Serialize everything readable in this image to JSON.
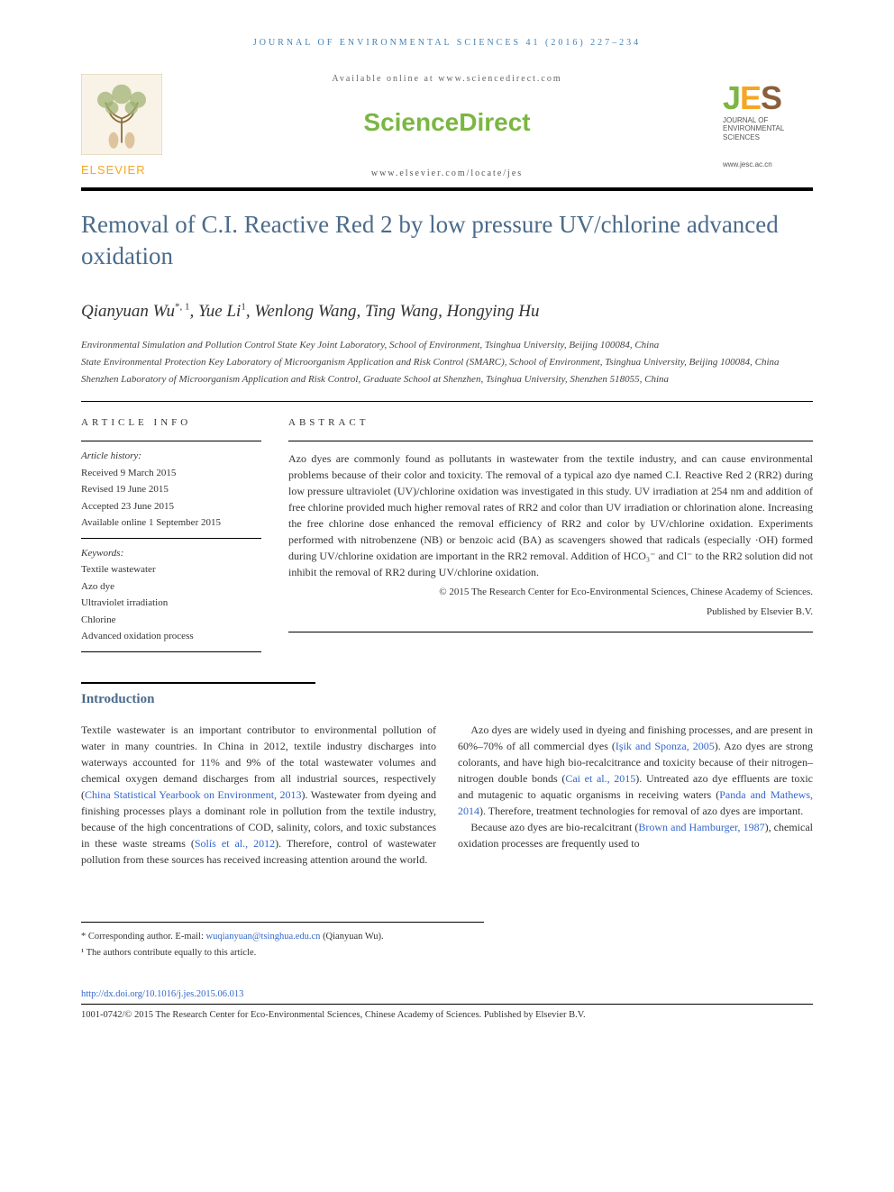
{
  "running_head": "JOURNAL OF ENVIRONMENTAL SCIENCES 41 (2016) 227–234",
  "masthead": {
    "available": "Available online at www.sciencedirect.com",
    "sciencedirect": "ScienceDirect",
    "locate_url": "www.elsevier.com/locate/jes",
    "elsevier_name": "ELSEVIER",
    "jes_sub": "JOURNAL OF ENVIRONMENTAL SCIENCES",
    "jes_url": "www.jesc.ac.cn"
  },
  "title": "Removal of C.I. Reactive Red 2 by low pressure UV/chlorine advanced oxidation",
  "authors_html": "Qianyuan Wu<sup>*, 1</sup>, Yue Li<sup>1</sup>, Wenlong Wang, Ting Wang, Hongying Hu",
  "affiliations": [
    "Environmental Simulation and Pollution Control State Key Joint Laboratory, School of Environment, Tsinghua University, Beijing 100084, China",
    "State Environmental Protection Key Laboratory of Microorganism Application and Risk Control (SMARC), School of Environment, Tsinghua University, Beijing 100084, China",
    "Shenzhen Laboratory of Microorganism Application and Risk Control, Graduate School at Shenzhen, Tsinghua University, Shenzhen 518055, China"
  ],
  "article_info": {
    "head": "ARTICLE INFO",
    "history_label": "Article history:",
    "received": "Received 9 March 2015",
    "revised": "Revised 19 June 2015",
    "accepted": "Accepted 23 June 2015",
    "online": "Available online 1 September 2015",
    "keywords_label": "Keywords:",
    "keywords": [
      "Textile wastewater",
      "Azo dye",
      "Ultraviolet irradiation",
      "Chlorine",
      "Advanced oxidation process"
    ]
  },
  "abstract": {
    "head": "ABSTRACT",
    "text": "Azo dyes are commonly found as pollutants in wastewater from the textile industry, and can cause environmental problems because of their color and toxicity. The removal of a typical azo dye named C.I. Reactive Red 2 (RR2) during low pressure ultraviolet (UV)/chlorine oxidation was investigated in this study. UV irradiation at 254 nm and addition of free chlorine provided much higher removal rates of RR2 and color than UV irradiation or chlorination alone. Increasing the free chlorine dose enhanced the removal efficiency of RR2 and color by UV/chlorine oxidation. Experiments performed with nitrobenzene (NB) or benzoic acid (BA) as scavengers showed that radicals (especially ·OH) formed during UV/chlorine oxidation are important in the RR2 removal. Addition of HCO₃⁻ and Cl⁻ to the RR2 solution did not inhibit the removal of RR2 during UV/chlorine oxidation.",
    "copyright1": "© 2015 The Research Center for Eco-Environmental Sciences, Chinese Academy of Sciences.",
    "copyright2": "Published by Elsevier B.V."
  },
  "introduction": {
    "head": "Introduction",
    "col1_p1a": "Textile wastewater is an important contributor to environmental pollution of water in many countries. In China in 2012, textile industry discharges into waterways accounted for 11% and 9% of the total wastewater volumes and chemical oxygen demand discharges from all industrial sources, respectively (",
    "col1_link1": "China Statistical Yearbook on Environment, 2013",
    "col1_p1b": "). Wastewater from dyeing and finishing processes plays a dominant role in pollution from the textile industry, because of the high concentrations of COD, salinity, colors, and toxic substances in these waste streams (",
    "col1_link2": "Solís et al., 2012",
    "col1_p1c": "). Therefore, control of",
    "col2_p1": "wastewater pollution from these sources has received increasing attention around the world.",
    "col2_p2a": "Azo dyes are widely used in dyeing and finishing processes, and are present in 60%–70% of all commercial dyes (",
    "col2_link1": "Işik and Sponza, 2005",
    "col2_p2b": "). Azo dyes are strong colorants, and have high bio-recalcitrance and toxicity because of their nitrogen–nitrogen double bonds (",
    "col2_link2": "Cai et al., 2015",
    "col2_p2c": "). Untreated azo dye effluents are toxic and mutagenic to aquatic organisms in receiving waters (",
    "col2_link3": "Panda and Mathews, 2014",
    "col2_p2d": "). Therefore, treatment technologies for removal of azo dyes are important.",
    "col2_p3a": "Because azo dyes are bio-recalcitrant (",
    "col2_link4": "Brown and Hamburger, 1987",
    "col2_p3b": "), chemical oxidation processes are frequently used to"
  },
  "footnotes": {
    "corr_label": "* Corresponding author.",
    "corr_text": " E-mail: ",
    "corr_email": "wuqianyuan@tsinghua.edu.cn",
    "corr_name": " (Qianyuan Wu).",
    "equal": "¹ The authors contribute equally to this article."
  },
  "doi": "http://dx.doi.org/10.1016/j.jes.2015.06.013",
  "issn_line": "1001-0742/© 2015 The Research Center for Eco-Environmental Sciences, Chinese Academy of Sciences. Published by Elsevier B.V.",
  "colors": {
    "title_blue": "#4b6b8a",
    "link_blue": "#3366cc",
    "sd_green": "#7bb642",
    "elsevier_orange": "#f5a623",
    "jes_brown": "#8b5e3c",
    "running_head_blue": "#4682b4"
  }
}
